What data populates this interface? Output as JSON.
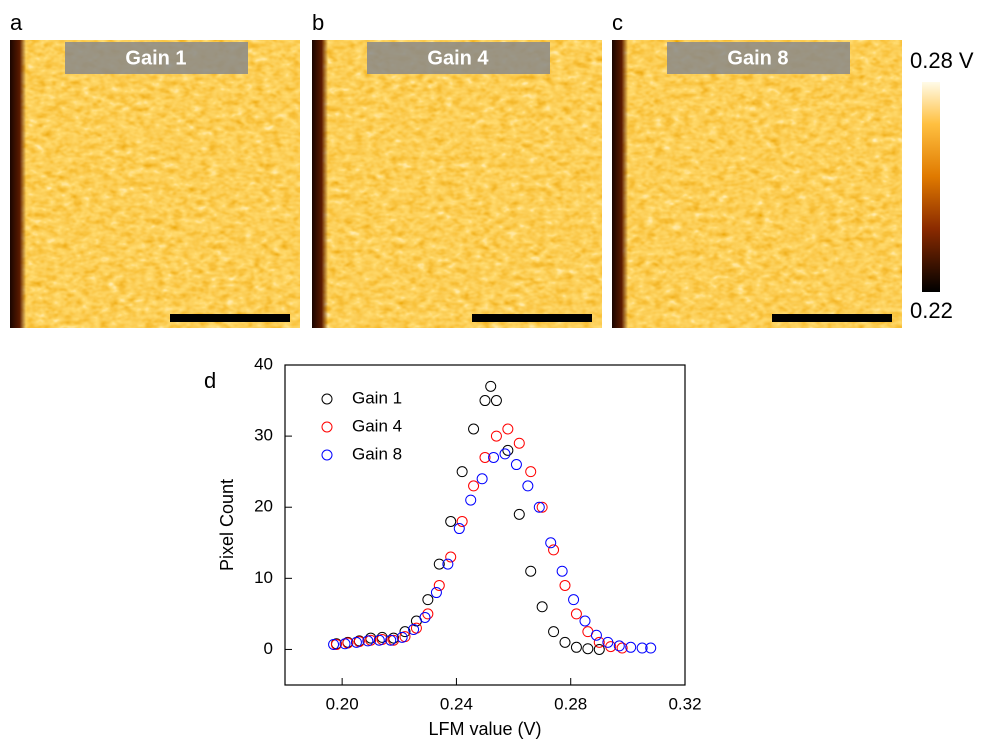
{
  "panels": [
    {
      "label": "a",
      "title": "Gain 1"
    },
    {
      "label": "b",
      "title": "Gain 4"
    },
    {
      "label": "c",
      "title": "Gain 8"
    }
  ],
  "colorbar": {
    "max_label": "0.28 V",
    "min_label": "0.22"
  },
  "chart_data": {
    "type": "scatter",
    "panel_label": "d",
    "x_label": "LFM value (V)",
    "y_label": "Pixel Count",
    "xlim": [
      0.18,
      0.32
    ],
    "ylim": [
      -5,
      40
    ],
    "xticks": [
      {
        "value": 0.2,
        "label": "0.20"
      },
      0.24,
      0.28,
      0.32
    ],
    "yticks": [
      0,
      10,
      20,
      30,
      40
    ],
    "series": [
      {
        "name": "Gain 1",
        "color": "#000000",
        "x": [
          0.198,
          0.202,
          0.206,
          0.21,
          0.214,
          0.218,
          0.222,
          0.226,
          0.23,
          0.234,
          0.238,
          0.242,
          0.246,
          0.25,
          0.252,
          0.254,
          0.258,
          0.262,
          0.266,
          0.27,
          0.274,
          0.278,
          0.282,
          0.286,
          0.29
        ],
        "values": [
          0.8,
          1.0,
          1.2,
          1.6,
          1.7,
          1.6,
          2.5,
          4,
          7,
          12,
          18,
          25,
          31,
          35,
          37,
          35,
          28,
          19,
          11,
          6,
          2.5,
          1,
          0.3,
          0.1,
          0
        ]
      },
      {
        "name": "Gain 4",
        "color": "#ff0000",
        "x": [
          0.198,
          0.202,
          0.206,
          0.21,
          0.214,
          0.218,
          0.222,
          0.226,
          0.23,
          0.234,
          0.238,
          0.242,
          0.246,
          0.25,
          0.254,
          0.258,
          0.262,
          0.266,
          0.27,
          0.274,
          0.278,
          0.282,
          0.286,
          0.29,
          0.294,
          0.298
        ],
        "values": [
          0.7,
          0.9,
          1.1,
          1.3,
          1.4,
          1.3,
          1.8,
          3,
          5,
          9,
          13,
          18,
          23,
          27,
          30,
          31,
          29,
          25,
          20,
          14,
          9,
          5,
          2.5,
          1,
          0.4,
          0.2
        ]
      },
      {
        "name": "Gain 8",
        "color": "#0000ff",
        "x": [
          0.197,
          0.201,
          0.205,
          0.209,
          0.213,
          0.217,
          0.221,
          0.225,
          0.229,
          0.233,
          0.237,
          0.241,
          0.245,
          0.249,
          0.253,
          0.257,
          0.261,
          0.265,
          0.269,
          0.273,
          0.277,
          0.281,
          0.285,
          0.289,
          0.293,
          0.297,
          0.301,
          0.305,
          0.308
        ],
        "values": [
          0.7,
          0.8,
          1.0,
          1.2,
          1.3,
          1.3,
          1.7,
          2.8,
          4.5,
          8,
          12,
          17,
          21,
          24,
          27,
          27.5,
          26,
          23,
          20,
          15,
          11,
          7,
          4,
          2,
          1,
          0.5,
          0.3,
          0.2,
          0.2
        ]
      }
    ]
  }
}
